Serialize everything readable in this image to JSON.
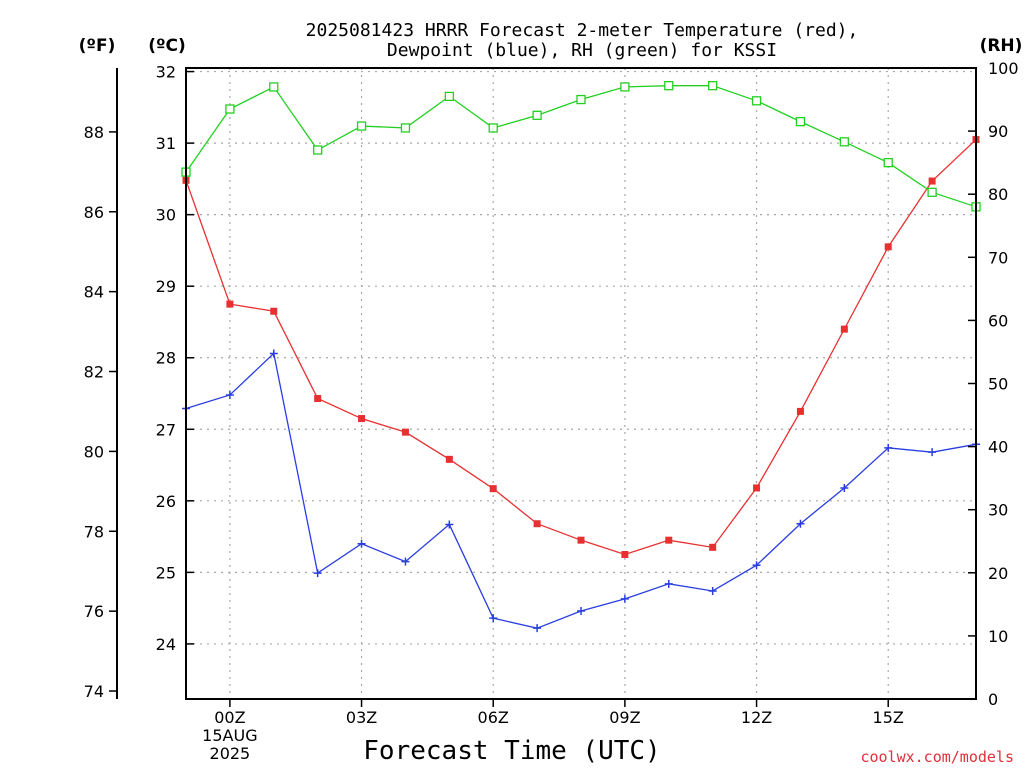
{
  "chart_data": {
    "type": "line",
    "title_lines": [
      "2025081423 HRRR Forecast 2-meter Temperature (red),",
      "Dewpoint (blue), RH (green) for KSSI"
    ],
    "xlabel": "Forecast Time (UTC)",
    "credit": "coolwx.com/models",
    "units": {
      "f": "(ºF)",
      "c": "(ºC)",
      "rh": "(RH)"
    },
    "x_hours": [
      -1,
      0,
      1,
      2,
      3,
      4,
      5,
      6,
      7,
      8,
      9,
      10,
      11,
      12,
      13,
      14,
      15,
      16,
      17
    ],
    "xlim": [
      -1,
      17
    ],
    "x_ticks": [
      {
        "hour": 0,
        "label": "00Z",
        "sub1": "15AUG",
        "sub2": "2025"
      },
      {
        "hour": 3,
        "label": "03Z"
      },
      {
        "hour": 6,
        "label": "06Z"
      },
      {
        "hour": 9,
        "label": "09Z"
      },
      {
        "hour": 12,
        "label": "12Z"
      },
      {
        "hour": 15,
        "label": "15Z"
      }
    ],
    "celsius_axis": {
      "ylim": [
        23.23,
        32.05
      ],
      "ticks": [
        "24",
        "25",
        "26",
        "27",
        "28",
        "29",
        "30",
        "31",
        "32"
      ]
    },
    "fahrenheit_axis": {
      "ylim": [
        73.8,
        89.6
      ],
      "ticks": [
        "74",
        "76",
        "78",
        "80",
        "82",
        "84",
        "86",
        "88"
      ]
    },
    "rh_axis": {
      "ylim": [
        0,
        100
      ],
      "ticks": [
        "0",
        "10",
        "20",
        "30",
        "40",
        "50",
        "60",
        "70",
        "80",
        "90",
        "100"
      ]
    },
    "series": [
      {
        "name": "Temperature",
        "axis": "celsius",
        "color": "#e83030",
        "marker": "filled-square",
        "values": [
          30.48,
          28.75,
          28.65,
          27.43,
          27.15,
          26.96,
          26.58,
          26.17,
          25.68,
          25.45,
          25.25,
          25.45,
          25.35,
          26.18,
          27.25,
          28.4,
          29.55,
          30.47,
          31.05
        ]
      },
      {
        "name": "Dewpoint",
        "axis": "celsius",
        "color": "#2a3ee0",
        "marker": "plus",
        "values": [
          27.29,
          27.48,
          28.06,
          24.99,
          25.4,
          25.15,
          25.67,
          24.36,
          24.22,
          24.46,
          24.63,
          24.84,
          24.74,
          25.1,
          25.68,
          26.18,
          26.74,
          26.68,
          26.79
        ]
      },
      {
        "name": "RH",
        "axis": "rh",
        "color": "#22d022",
        "marker": "open-square",
        "values": [
          83.5,
          93.5,
          97.0,
          87.0,
          90.8,
          90.5,
          95.5,
          90.5,
          92.5,
          95.0,
          97.0,
          97.2,
          97.2,
          94.8,
          91.5,
          88.3,
          85.0,
          80.3,
          78.0
        ]
      }
    ]
  }
}
